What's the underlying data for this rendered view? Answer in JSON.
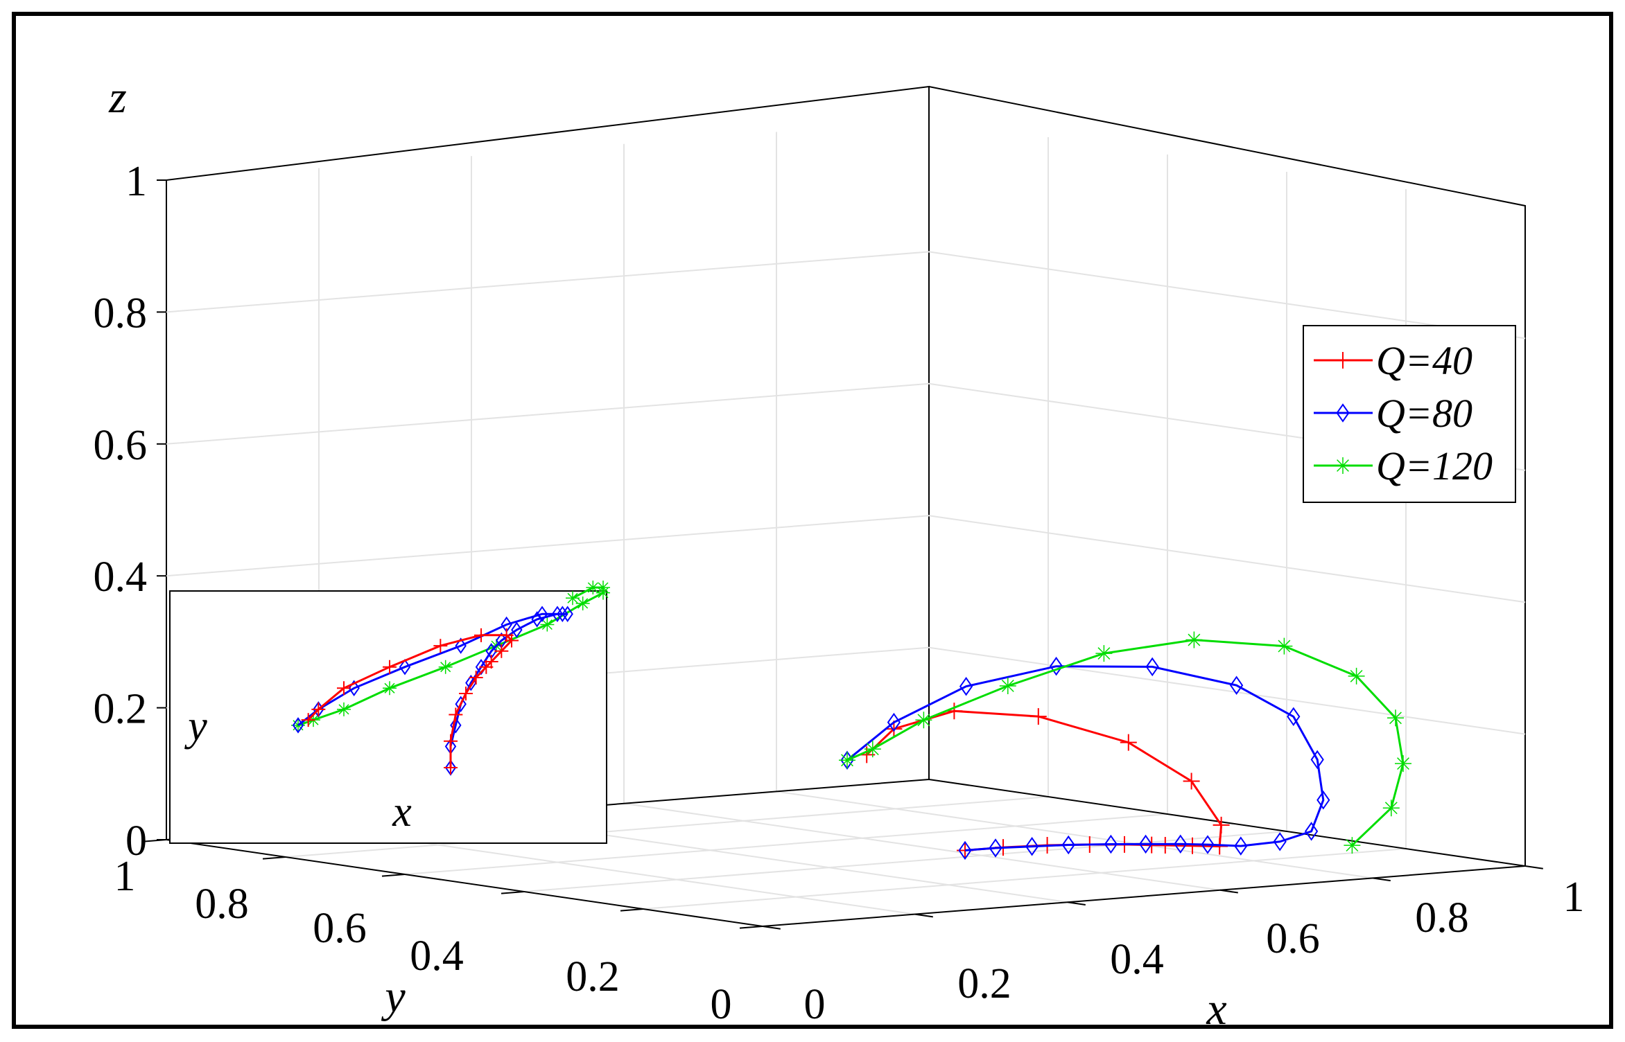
{
  "chart_data": {
    "type": "line",
    "projection": "3d",
    "title": "",
    "xlabel": "x",
    "ylabel": "y",
    "zlabel": "z",
    "xlim": [
      0,
      1
    ],
    "ylim": [
      0,
      1
    ],
    "zlim": [
      0,
      1
    ],
    "grid": true,
    "legend_position": "right",
    "x_ticks": [
      "0",
      "0.2",
      "0.4",
      "0.6",
      "0.8",
      "1"
    ],
    "y_ticks": [
      "0",
      "0.2",
      "0.4",
      "0.6",
      "0.8",
      "1"
    ],
    "z_ticks": [
      "0",
      "0.2",
      "0.4",
      "0.6",
      "0.8",
      "1"
    ],
    "series": [
      {
        "name": "Q=40",
        "color": "#ff0000",
        "marker": "plus",
        "x": [
          0.7,
          0.7,
          0.71,
          0.73,
          0.75,
          0.77,
          0.78,
          0.8,
          0.82,
          0.81,
          0.76,
          0.68,
          0.58,
          0.49,
          0.44,
          0.42
        ],
        "y": [
          0.5,
          0.45,
          0.4,
          0.36,
          0.33,
          0.31,
          0.3,
          0.28,
          0.26,
          0.25,
          0.25,
          0.27,
          0.31,
          0.35,
          0.39,
          0.41
        ],
        "z": [
          0.03,
          0.03,
          0.03,
          0.03,
          0.03,
          0.03,
          0.03,
          0.03,
          0.03,
          0.06,
          0.12,
          0.17,
          0.2,
          0.2,
          0.17,
          0.13
        ]
      },
      {
        "name": "Q=80",
        "color": "#0000ff",
        "marker": "diamond",
        "x": [
          0.7,
          0.7,
          0.71,
          0.72,
          0.74,
          0.76,
          0.78,
          0.8,
          0.83,
          0.87,
          0.91,
          0.93,
          0.92,
          0.88,
          0.81,
          0.72,
          0.61,
          0.51,
          0.44,
          0.4
        ],
        "y": [
          0.5,
          0.46,
          0.42,
          0.38,
          0.34,
          0.31,
          0.28,
          0.26,
          0.24,
          0.22,
          0.21,
          0.21,
          0.21,
          0.21,
          0.23,
          0.27,
          0.31,
          0.35,
          0.39,
          0.42
        ],
        "z": [
          0.03,
          0.03,
          0.03,
          0.03,
          0.03,
          0.03,
          0.03,
          0.03,
          0.03,
          0.04,
          0.06,
          0.11,
          0.17,
          0.23,
          0.27,
          0.29,
          0.28,
          0.24,
          0.18,
          0.12
        ]
      },
      {
        "name": "Q=120",
        "color": "#00dd00",
        "marker": "star",
        "x": [
          0.94,
          0.98,
          1.0,
          1.0,
          0.96,
          0.89,
          0.79,
          0.69,
          0.58,
          0.49,
          0.43,
          0.4
        ],
        "y": [
          0.18,
          0.16,
          0.16,
          0.17,
          0.19,
          0.23,
          0.27,
          0.31,
          0.35,
          0.39,
          0.41,
          0.42
        ],
        "z": [
          0.04,
          0.1,
          0.17,
          0.24,
          0.3,
          0.34,
          0.34,
          0.31,
          0.25,
          0.19,
          0.14,
          0.12
        ]
      }
    ],
    "inset": {
      "xlabel": "x",
      "ylabel": "y"
    }
  }
}
